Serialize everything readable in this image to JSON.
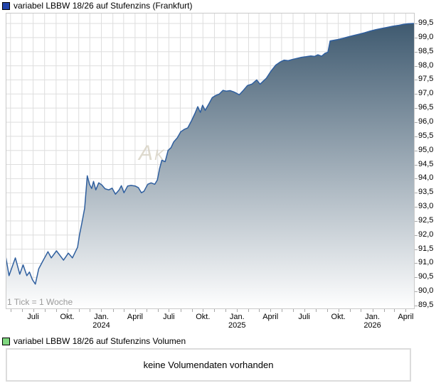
{
  "price_chart": {
    "legend_label": "variabel LBBW 18/26 auf Stufenzins (Frankfurt)",
    "legend_color": "#2244aa",
    "tick_note": "1 Tick = 1 Woche",
    "watermark": "Aktiencheck",
    "line_color": "#2f5f9f",
    "fill_top_color": "#3f5a70",
    "fill_bottom_color": "#ffffff",
    "grid_color": "#dedede",
    "border_color": "#c9c9c9",
    "axis_tick_color": "#a8a8a8"
  },
  "volume_chart": {
    "legend_label": "variabel LBBW 18/26 auf Stufenzins Volumen",
    "legend_color": "#7fd77f",
    "message": "keine Volumendaten vorhanden"
  },
  "chart_data": {
    "type": "area",
    "title": "variabel LBBW 18/26 auf Stufenzins (Frankfurt)",
    "grid": true,
    "legend_position": "top-left",
    "x_axis": {
      "start": "2023-04-18",
      "end": "2026-04-25",
      "tick_unit_note": "1 Tick = 1 Woche",
      "gridline_interval": "month",
      "ticks": [
        {
          "label": "Juli",
          "year": "",
          "date": "2023-07-01"
        },
        {
          "label": "Okt.",
          "year": "",
          "date": "2023-10-01"
        },
        {
          "label": "Jan.",
          "year": "2024",
          "date": "2024-01-01"
        },
        {
          "label": "April",
          "year": "",
          "date": "2024-04-01"
        },
        {
          "label": "Juli",
          "year": "",
          "date": "2024-07-01"
        },
        {
          "label": "Okt.",
          "year": "",
          "date": "2024-10-01"
        },
        {
          "label": "Jan.",
          "year": "2025",
          "date": "2025-01-01"
        },
        {
          "label": "April",
          "year": "",
          "date": "2025-04-01"
        },
        {
          "label": "Juli",
          "year": "",
          "date": "2025-07-01"
        },
        {
          "label": "Okt.",
          "year": "",
          "date": "2025-10-01"
        },
        {
          "label": "Jan.",
          "year": "2026",
          "date": "2026-01-01"
        },
        {
          "label": "April",
          "year": "",
          "date": "2026-04-01"
        }
      ]
    },
    "y_axis": {
      "min": 89.5,
      "max": 99.5,
      "step": 0.5,
      "side": "right",
      "tick_labels": [
        "99,5",
        "99,0",
        "98,5",
        "98,0",
        "97,5",
        "97,0",
        "96,5",
        "96,0",
        "95,5",
        "95,0",
        "94,5",
        "94,0",
        "93,5",
        "93,0",
        "92,5",
        "92,0",
        "91,5",
        "91,0",
        "90,5",
        "90,0",
        "89,5"
      ]
    },
    "series": [
      {
        "name": "variabel LBBW 18/26 auf Stufenzins (Frankfurt)",
        "points": [
          [
            "2023-04-18",
            91.25
          ],
          [
            "2023-04-27",
            90.56
          ],
          [
            "2023-05-14",
            91.19
          ],
          [
            "2023-05-26",
            90.61
          ],
          [
            "2023-06-04",
            90.94
          ],
          [
            "2023-06-14",
            90.56
          ],
          [
            "2023-06-21",
            90.69
          ],
          [
            "2023-06-29",
            90.42
          ],
          [
            "2023-07-07",
            90.26
          ],
          [
            "2023-07-16",
            90.8
          ],
          [
            "2023-07-26",
            91.05
          ],
          [
            "2023-08-10",
            91.41
          ],
          [
            "2023-08-19",
            91.19
          ],
          [
            "2023-09-02",
            91.44
          ],
          [
            "2023-09-21",
            91.11
          ],
          [
            "2023-10-04",
            91.36
          ],
          [
            "2023-10-15",
            91.19
          ],
          [
            "2023-10-29",
            91.57
          ],
          [
            "2023-11-03",
            92.0
          ],
          [
            "2023-11-09",
            92.4
          ],
          [
            "2023-11-17",
            92.95
          ],
          [
            "2023-11-24",
            94.1
          ],
          [
            "2023-11-30",
            93.8
          ],
          [
            "2023-12-06",
            93.65
          ],
          [
            "2023-12-11",
            93.9
          ],
          [
            "2023-12-17",
            93.6
          ],
          [
            "2023-12-25",
            93.85
          ],
          [
            "2024-01-02",
            93.78
          ],
          [
            "2024-01-11",
            93.64
          ],
          [
            "2024-01-21",
            93.6
          ],
          [
            "2024-01-30",
            93.66
          ],
          [
            "2024-02-08",
            93.45
          ],
          [
            "2024-02-18",
            93.6
          ],
          [
            "2024-02-24",
            93.75
          ],
          [
            "2024-03-02",
            93.5
          ],
          [
            "2024-03-12",
            93.74
          ],
          [
            "2024-03-21",
            93.76
          ],
          [
            "2024-04-01",
            93.74
          ],
          [
            "2024-04-10",
            93.68
          ],
          [
            "2024-04-18",
            93.5
          ],
          [
            "2024-04-25",
            93.55
          ],
          [
            "2024-05-05",
            93.8
          ],
          [
            "2024-05-14",
            93.85
          ],
          [
            "2024-05-24",
            93.8
          ],
          [
            "2024-05-31",
            93.95
          ],
          [
            "2024-06-06",
            94.35
          ],
          [
            "2024-06-12",
            94.65
          ],
          [
            "2024-06-21",
            94.6
          ],
          [
            "2024-06-29",
            95.0
          ],
          [
            "2024-07-07",
            95.1
          ],
          [
            "2024-07-14",
            95.3
          ],
          [
            "2024-07-24",
            95.45
          ],
          [
            "2024-08-02",
            95.66
          ],
          [
            "2024-08-12",
            95.75
          ],
          [
            "2024-08-21",
            95.8
          ],
          [
            "2024-08-31",
            96.05
          ],
          [
            "2024-09-09",
            96.3
          ],
          [
            "2024-09-17",
            96.55
          ],
          [
            "2024-09-24",
            96.35
          ],
          [
            "2024-09-30",
            96.6
          ],
          [
            "2024-10-07",
            96.42
          ],
          [
            "2024-10-17",
            96.65
          ],
          [
            "2024-10-26",
            96.87
          ],
          [
            "2024-11-05",
            96.95
          ],
          [
            "2024-11-14",
            97.0
          ],
          [
            "2024-11-24",
            97.13
          ],
          [
            "2024-12-03",
            97.1
          ],
          [
            "2024-12-13",
            97.12
          ],
          [
            "2024-12-22",
            97.08
          ],
          [
            "2024-12-30",
            97.03
          ],
          [
            "2025-01-07",
            96.97
          ],
          [
            "2025-01-16",
            97.1
          ],
          [
            "2025-01-29",
            97.3
          ],
          [
            "2025-02-10",
            97.35
          ],
          [
            "2025-02-23",
            97.5
          ],
          [
            "2025-03-04",
            97.35
          ],
          [
            "2025-03-12",
            97.45
          ],
          [
            "2025-03-21",
            97.56
          ],
          [
            "2025-04-02",
            97.8
          ],
          [
            "2025-04-15",
            98.02
          ],
          [
            "2025-04-28",
            98.14
          ],
          [
            "2025-05-08",
            98.2
          ],
          [
            "2025-05-19",
            98.18
          ],
          [
            "2025-05-29",
            98.22
          ],
          [
            "2025-06-11",
            98.26
          ],
          [
            "2025-06-24",
            98.3
          ],
          [
            "2025-07-06",
            98.32
          ],
          [
            "2025-07-19",
            98.35
          ],
          [
            "2025-07-29",
            98.33
          ],
          [
            "2025-08-07",
            98.39
          ],
          [
            "2025-08-17",
            98.34
          ],
          [
            "2025-08-26",
            98.44
          ],
          [
            "2025-09-03",
            98.48
          ],
          [
            "2025-09-09",
            98.88
          ],
          [
            "2025-09-18",
            98.9
          ],
          [
            "2025-09-30",
            98.93
          ],
          [
            "2025-10-13",
            98.97
          ],
          [
            "2025-10-26",
            99.02
          ],
          [
            "2025-11-10",
            99.07
          ],
          [
            "2025-11-26",
            99.12
          ],
          [
            "2025-12-11",
            99.17
          ],
          [
            "2025-12-26",
            99.23
          ],
          [
            "2026-01-10",
            99.28
          ],
          [
            "2026-01-25",
            99.32
          ],
          [
            "2026-02-09",
            99.36
          ],
          [
            "2026-02-24",
            99.4
          ],
          [
            "2026-03-11",
            99.43
          ],
          [
            "2026-03-26",
            99.47
          ],
          [
            "2026-04-08",
            99.49
          ],
          [
            "2026-04-24",
            99.5
          ]
        ]
      }
    ],
    "volume": {
      "legend_label": "variabel LBBW 18/26 auf Stufenzins Volumen",
      "message": "keine Volumendaten vorhanden"
    }
  }
}
